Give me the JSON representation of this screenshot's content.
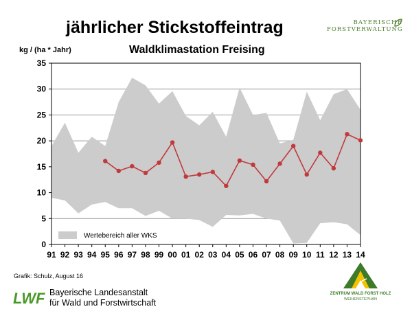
{
  "header": {
    "brand_line1": "BAYERISCHE",
    "brand_line2": "FORSTVERWALTUNG"
  },
  "footer": {
    "credit": "Grafik: Schulz, August 16",
    "lwf_logo_text": "LWF",
    "institution_line1": "Bayerische Landesanstalt",
    "institution_line2": "für Wald und Forstwirtschaft",
    "zentrum_line1": "ZENTRUM WALD FORST HOLZ",
    "zentrum_line2": "WEIHENSTEPHAN"
  },
  "colors": {
    "range_fill": "#cccccc",
    "series_line": "#c0393b",
    "brand_green": "#3d7a2a",
    "lwf_green": "#4a9a2a"
  },
  "chart_data": {
    "type": "line",
    "title": "jährlicher Stickstoffeintrag",
    "subtitle": "Waldklimastation Freising",
    "ylabel": "kg / (ha * Jahr)",
    "xlabel": "",
    "ylim": [
      0,
      35
    ],
    "yticks": [
      0,
      5,
      10,
      15,
      20,
      25,
      30,
      35
    ],
    "grid": true,
    "legend_position": "bottom-left",
    "categories": [
      "91",
      "92",
      "93",
      "94",
      "95",
      "96",
      "97",
      "98",
      "99",
      "00",
      "01",
      "02",
      "03",
      "04",
      "05",
      "06",
      "07",
      "08",
      "09",
      "10",
      "11",
      "12",
      "13",
      "14"
    ],
    "range_band": {
      "name": "Wertebereich aller WKS",
      "upper": [
        19,
        23.5,
        17.7,
        20.8,
        19,
        27.5,
        32.2,
        30.7,
        27.2,
        29.6,
        24.8,
        23,
        25.6,
        20.8,
        30.3,
        25,
        25.4,
        19.5,
        20.2,
        29.5,
        24,
        29,
        30,
        26
      ],
      "lower": [
        9,
        8.5,
        6,
        7.7,
        8.2,
        7,
        7,
        5.5,
        6.5,
        5,
        5,
        4.7,
        3.4,
        5.7,
        5.6,
        5.9,
        5,
        4.6,
        0.2,
        0.3,
        4.1,
        4.3,
        3.9,
        1.8
      ]
    },
    "series": [
      {
        "values": [
          null,
          null,
          null,
          null,
          16.1,
          14.2,
          15.1,
          13.8,
          15.8,
          19.7,
          13.1,
          13.5,
          14,
          11.3,
          16.2,
          15.4,
          12.2,
          15.6,
          19,
          13.5,
          17.7,
          14.7,
          21.3,
          20.1
        ]
      }
    ]
  }
}
